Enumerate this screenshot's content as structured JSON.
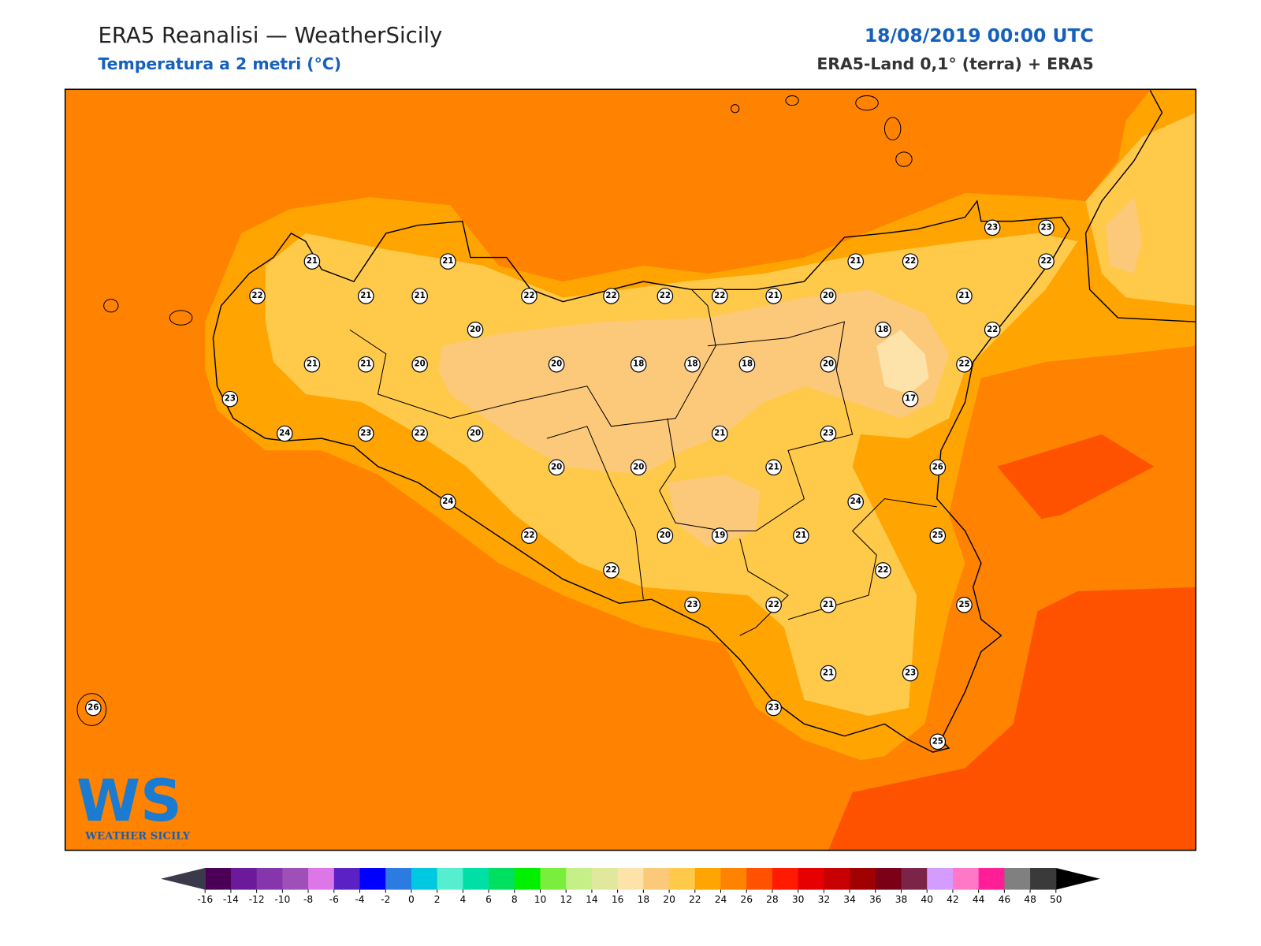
{
  "header": {
    "title": "ERA5 Reanalisi — WeatherSicily",
    "subtitle": "Temperatura a 2 metri (°C)",
    "datetime": "18/08/2019 00:00 UTC",
    "source": "ERA5-Land 0,1° (terra) + ERA5"
  },
  "stations": [
    21,
    21,
    22,
    21,
    21,
    22,
    22,
    22,
    22,
    21,
    20,
    21,
    22,
    23,
    23,
    22,
    21,
    20,
    18,
    22,
    21,
    21,
    20,
    20,
    18,
    18,
    18,
    20,
    22,
    17,
    23,
    24,
    23,
    22,
    20,
    21,
    23,
    20,
    20,
    21,
    26,
    24,
    24,
    22,
    20,
    19,
    21,
    25,
    22,
    22,
    23,
    22,
    21,
    25,
    21,
    23,
    23,
    25,
    26
  ],
  "logo": {
    "mark": "WS",
    "text": "WEATHER SICILY"
  },
  "colorbar": {
    "ticks": [
      -16,
      -14,
      -12,
      -10,
      -8,
      -6,
      -4,
      -2,
      0,
      2,
      4,
      6,
      8,
      10,
      12,
      14,
      16,
      18,
      20,
      22,
      24,
      26,
      28,
      30,
      32,
      34,
      36,
      38,
      40,
      42,
      44,
      46,
      48,
      50
    ],
    "colors": [
      "#4b0058",
      "#6a1a9a",
      "#8436aa",
      "#9f4fb8",
      "#dd77e8",
      "#5a22c4",
      "#0000ff",
      "#2b7be0",
      "#00c8e0",
      "#55efd0",
      "#00e0a6",
      "#00e060",
      "#00f000",
      "#7aee3c",
      "#c5f088",
      "#dfe89c",
      "#fde3a9",
      "#fcc97b",
      "#ffc94a",
      "#ffa400",
      "#ff8200",
      "#ff5200",
      "#ff1a00",
      "#e60000",
      "#c80000",
      "#a00000",
      "#7a0016",
      "#7b2448",
      "#d49cff",
      "#ff78c8",
      "#ff1e96",
      "#808080",
      "#3a3a3a"
    ],
    "under_color": "#3a3a4a",
    "over_color": "#000000"
  }
}
